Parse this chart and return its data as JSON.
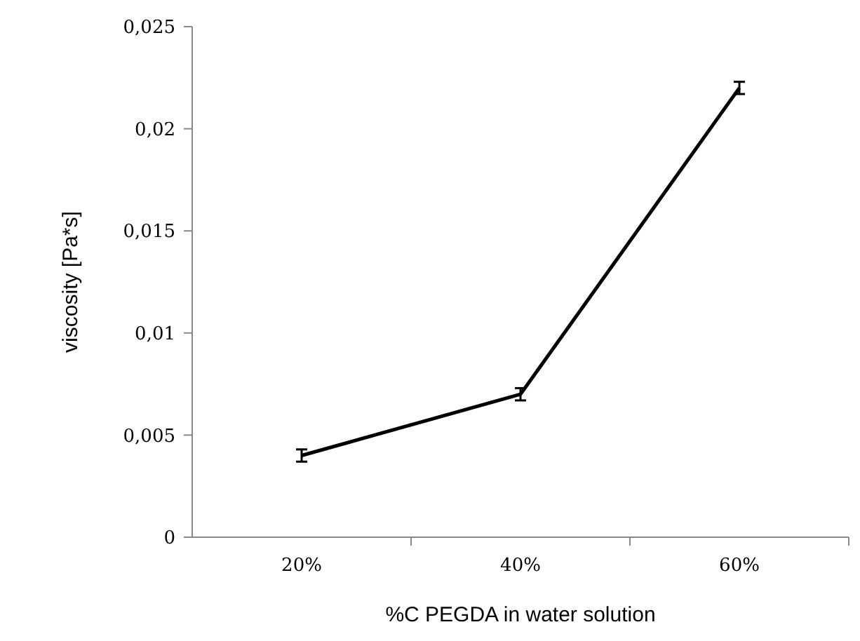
{
  "chart_data": {
    "type": "line",
    "xlabel": "%C PEGDA in water solution",
    "ylabel": "viscosity [Pa*s]",
    "categories": [
      "20%",
      "40%",
      "60%"
    ],
    "series": [
      {
        "color": "#000000",
        "values": [
          0.004,
          0.007,
          0.022
        ],
        "errors": [
          0.0003,
          0.0003,
          0.0003
        ]
      }
    ],
    "ylim": [
      0,
      0.025
    ],
    "yticks": [
      {
        "value": 0,
        "label": "0"
      },
      {
        "value": 0.005,
        "label": "0,005"
      },
      {
        "value": 0.01,
        "label": "0,01"
      },
      {
        "value": 0.015,
        "label": "0,015"
      },
      {
        "value": 0.02,
        "label": "0,02"
      },
      {
        "value": 0.025,
        "label": "0,025"
      }
    ],
    "marker": "none",
    "line_style": "solid"
  }
}
